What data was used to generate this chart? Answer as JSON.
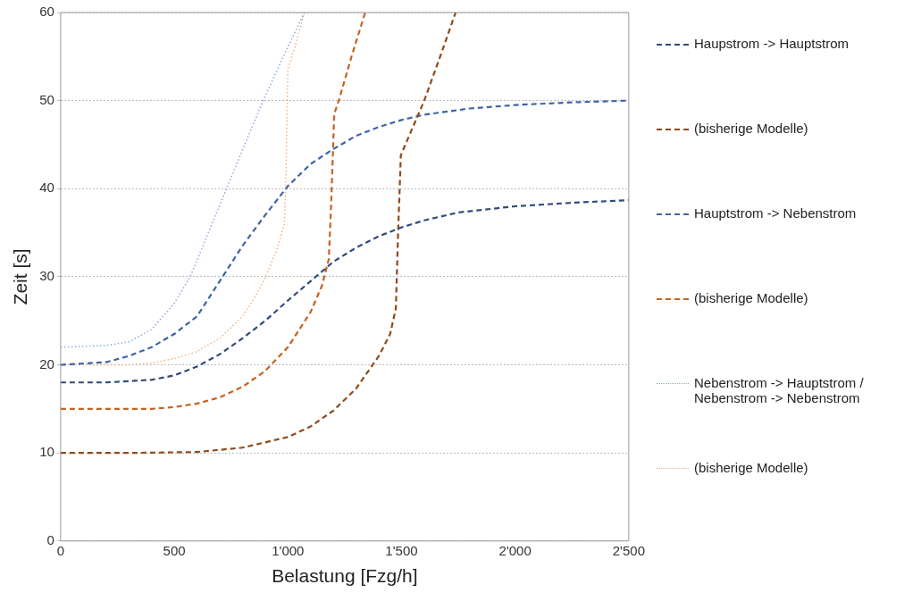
{
  "chart_data": {
    "type": "line",
    "xlabel": "Belastung [Fzg/h]",
    "ylabel": "Zeit [s]",
    "xlim": [
      0,
      2500
    ],
    "ylim": [
      0,
      60
    ],
    "xticks": [
      0,
      500,
      {
        "value": 1000,
        "label": "1'000"
      },
      {
        "value": 1500,
        "label": "1'500"
      },
      {
        "value": 2000,
        "label": "2'000"
      },
      {
        "value": 2500,
        "label": "2'500"
      }
    ],
    "yticks": [
      0,
      10,
      20,
      30,
      40,
      50,
      60
    ],
    "grid": "y",
    "legend": "right",
    "marker": "none",
    "series": [
      {
        "name": "Haupstrom -> Hauptstrom",
        "color": "#2f4b7c",
        "line_style": "dashed",
        "x": [
          0,
          200,
          400,
          500,
          600,
          700,
          800,
          900,
          1000,
          1100,
          1200,
          1300,
          1400,
          1500,
          1600,
          1750,
          2000,
          2250,
          2500
        ],
        "values": [
          18,
          18,
          18.3,
          18.8,
          19.8,
          21.2,
          23,
          25,
          27.3,
          29.5,
          31.7,
          33.3,
          34.6,
          35.6,
          36.4,
          37.3,
          38,
          38.4,
          38.7
        ]
      },
      {
        "name": "(bisherige Modelle)",
        "color": "#8e4a1c",
        "line_style": "dashed",
        "x": [
          0,
          300,
          600,
          800,
          1000,
          1100,
          1200,
          1300,
          1400,
          1450,
          1475,
          1485,
          1497,
          1550,
          1600,
          1670,
          1738
        ],
        "values": [
          10,
          10,
          10.1,
          10.6,
          11.8,
          13,
          14.8,
          17.3,
          21,
          23.5,
          26.4,
          35,
          43.8,
          47,
          50,
          55,
          60
        ]
      },
      {
        "name": "Hauptstrom -> Nebenstrom",
        "color": "#3f64a6",
        "line_style": "dashed",
        "x": [
          0,
          200,
          300,
          400,
          500,
          600,
          700,
          800,
          900,
          1000,
          1100,
          1200,
          1300,
          1400,
          1500,
          1600,
          1800,
          2000,
          2250,
          2500
        ],
        "values": [
          20,
          20.3,
          21,
          22,
          23.5,
          25.5,
          29.5,
          33.5,
          37,
          40.3,
          42.8,
          44.5,
          46,
          47,
          47.8,
          48.4,
          49.1,
          49.5,
          49.8,
          50
        ]
      },
      {
        "name": "(bisherige Modelle)",
        "color": "#c7621f",
        "line_style": "dashed",
        "x": [
          0,
          400,
          500,
          600,
          700,
          800,
          900,
          1000,
          1100,
          1150,
          1180,
          1190,
          1204,
          1224,
          1280,
          1340
        ],
        "values": [
          15,
          15,
          15.2,
          15.6,
          16.3,
          17.5,
          19.3,
          22,
          26,
          29,
          32,
          38,
          48.5,
          50,
          55,
          60
        ]
      },
      {
        "name": "Nebenstrom -> Hauptstrom / Nebenstrom -> Nebenstrom",
        "color": "#8faadc",
        "line_style": "dotted",
        "x": [
          0,
          200,
          300,
          400,
          500,
          570,
          650,
          730,
          810,
          891,
          980,
          1072
        ],
        "values": [
          22,
          22.2,
          22.6,
          24,
          27,
          30,
          35,
          40,
          45,
          50,
          55,
          60
        ]
      },
      {
        "name": "(bisherige Modelle)",
        "color": "#f4b183",
        "line_style": "dotted",
        "x": [
          0,
          300,
          400,
          500,
          600,
          700,
          800,
          850,
          903,
          950,
          985,
          990,
          1000,
          1030,
          1072
        ],
        "values": [
          20,
          20,
          20.2,
          20.7,
          21.5,
          23,
          25.5,
          27.5,
          30,
          33,
          36,
          40,
          53.6,
          56,
          60
        ]
      }
    ]
  }
}
